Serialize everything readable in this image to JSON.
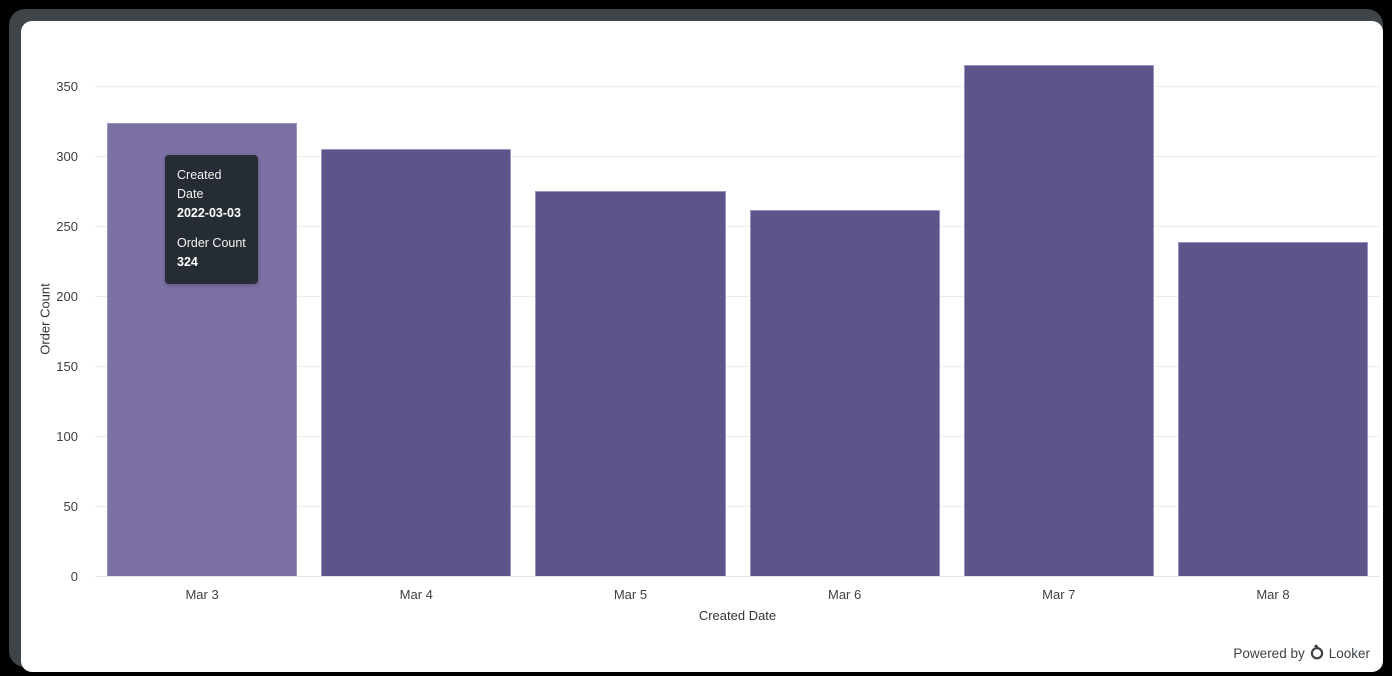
{
  "chart_data": {
    "type": "bar",
    "title": "",
    "xlabel": "Created Date",
    "ylabel": "Order Count",
    "categories": [
      "Mar 3",
      "Mar 4",
      "Mar 5",
      "Mar 6",
      "Mar 7",
      "Mar 8"
    ],
    "values": [
      324,
      306,
      276,
      262,
      366,
      239
    ],
    "y_ticks": [
      0,
      50,
      100,
      150,
      200,
      250,
      300,
      350
    ],
    "ylim": [
      0,
      375
    ],
    "grid": "horizontal",
    "legend": "none",
    "hover_index": 0,
    "colors": {
      "bar": "#5f5489",
      "bar_hover": "#7c70a5",
      "bar_border": "#9c93c3",
      "gridline": "#ececec",
      "axis_line": "#dfe3ed",
      "tick_text": "#3f3f3f",
      "tooltip_bg": "#262c33",
      "tooltip_text": "#ffffff"
    }
  },
  "tooltip": {
    "dimension_label": "Created Date",
    "dimension_value": "2022-03-03",
    "measure_label": "Order Count",
    "measure_value": "324"
  },
  "footer": {
    "powered_by": "Powered by",
    "brand": "Looker"
  }
}
